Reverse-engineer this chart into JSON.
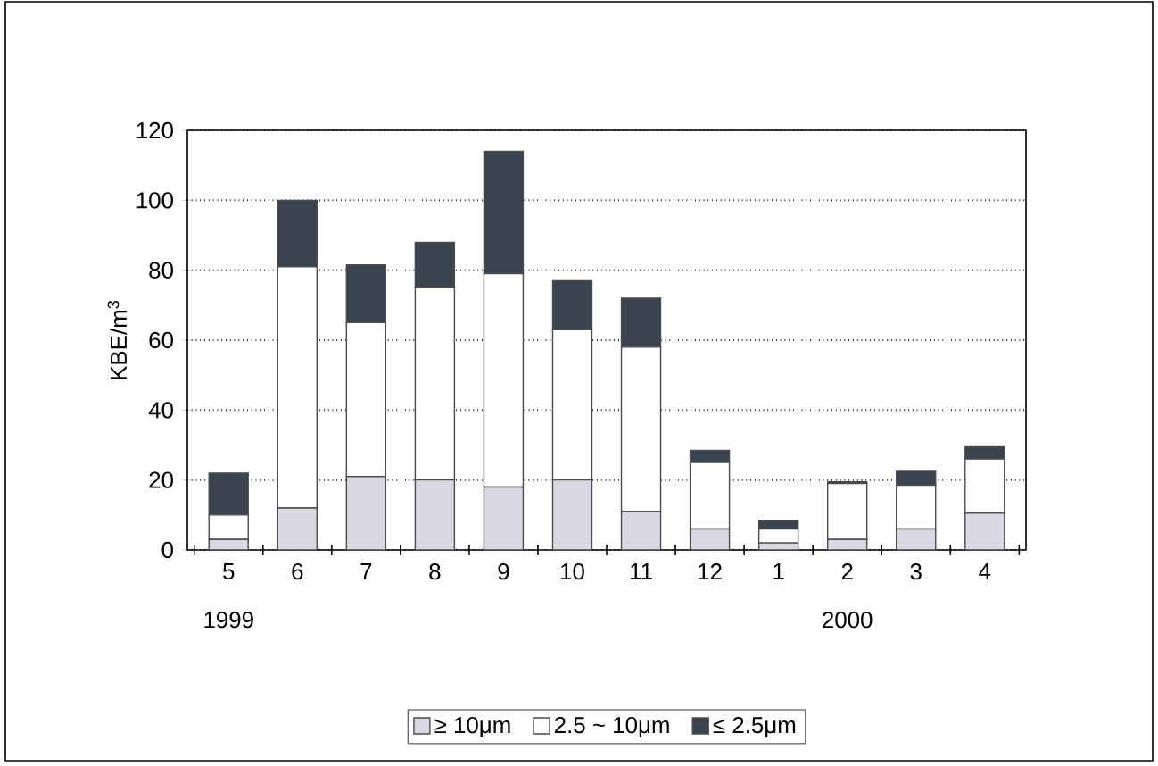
{
  "chart_data": {
    "type": "bar",
    "stacked": true,
    "ylabel": "KBE/m$^{3}$",
    "categories": [
      "5",
      "6",
      "7",
      "8",
      "9",
      "10",
      "11",
      "12",
      "1",
      "2",
      "3",
      "4"
    ],
    "series": [
      {
        "name": "≥ 10μm",
        "color": "#d8d8e2",
        "values": [
          3,
          12,
          21,
          20,
          18,
          20,
          11,
          6,
          2,
          3,
          6,
          10.5
        ]
      },
      {
        "name": "2.5 ~ 10μm",
        "color": "#ffffff",
        "values": [
          7,
          69,
          44,
          55,
          61,
          43,
          47,
          19,
          4,
          16,
          12.5,
          15.5
        ]
      },
      {
        "name": "≤ 2.5μm",
        "color": "#3a4450",
        "values": [
          12,
          19,
          16.5,
          13,
          35,
          14,
          14,
          3.5,
          2.5,
          0.5,
          4,
          3.5
        ]
      }
    ],
    "ylim": [
      0,
      120
    ],
    "yticks": [
      0,
      20,
      40,
      60,
      80,
      100,
      120
    ],
    "grid": "y",
    "legend": "bottom",
    "annotations": [
      "1999",
      "2000"
    ]
  }
}
